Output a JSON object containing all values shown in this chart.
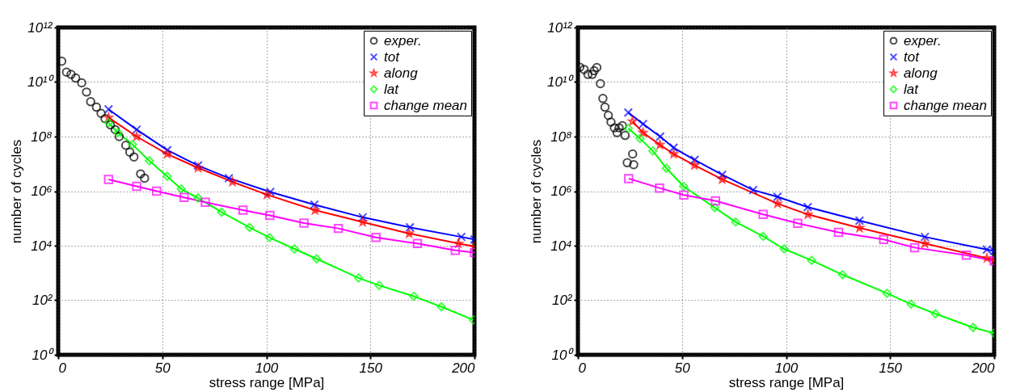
{
  "chart_data": [
    {
      "type": "line",
      "xlabel": "stress range [MPa]",
      "ylabel": "number of cycles",
      "log": "y",
      "grid": true,
      "legend": "top right",
      "xlim": [
        0,
        200
      ],
      "xticks": [
        0,
        50,
        100,
        150,
        200
      ],
      "ylim": [
        1,
        1000000000000.0
      ],
      "yticks": [
        {
          "value": 1,
          "label": "10⁰"
        },
        {
          "value": 100,
          "label": "10²"
        },
        {
          "value": 10000,
          "label": "10⁴"
        },
        {
          "value": 1000000,
          "label": "10⁶"
        },
        {
          "value": 100000000,
          "label": "10⁸"
        },
        {
          "value": 10000000000,
          "label": "10¹⁰"
        },
        {
          "value": 1000000000000,
          "label": "10¹²"
        }
      ],
      "series": [
        {
          "name": "exper.",
          "type": "scatter",
          "marker": "circle",
          "color": "#000000",
          "x": [
            1.7,
            4,
            6.2,
            8.4,
            11.3,
            13.6,
            15.6,
            18.4,
            20.6,
            22.5,
            25.1,
            27.4,
            29.3,
            32.5,
            34.4,
            36.4,
            39.6,
            41.5
          ],
          "values": [
            58000000000.0,
            23000000000.0,
            19000000000.0,
            14000000000.0,
            9300000000.0,
            4300000000.0,
            1900000000.0,
            1200000000.0,
            710000000.0,
            460000000.0,
            270000000.0,
            180000000.0,
            100000000.0,
            48000000.0,
            27000000.0,
            18000000.0,
            4300000.0,
            3000000.0
          ]
        },
        {
          "name": "tot",
          "marker": "cross",
          "color": "#0000ff",
          "x": [
            24.2,
            37.7,
            52.4,
            67.2,
            82,
            101.9,
            123.1,
            146.3,
            169,
            193.7,
            200
          ],
          "values": [
            1000000000.0,
            180000000.0,
            32000000.0,
            8700000.0,
            3000000.0,
            930000.0,
            320000.0,
            110000.0,
            47000.0,
            21000.0,
            17000.0
          ]
        },
        {
          "name": "along",
          "marker": "star",
          "color": "#ff0000",
          "x": [
            24.2,
            37.7,
            52.4,
            67.2,
            83.7,
            100.3,
            123.4,
            146.3,
            168.6,
            192.3,
            200
          ],
          "values": [
            500000000.0,
            100000000.0,
            23000000.0,
            7100000.0,
            2200000.0,
            740000.0,
            200000.0,
            74000.0,
            28000.0,
            12000.0,
            9300.0
          ]
        },
        {
          "name": "lat",
          "marker": "diamond",
          "color": "#00ff00",
          "x": [
            24.2,
            28.7,
            35.7,
            43.8,
            52.4,
            59.1,
            67.2,
            78.5,
            91.9,
            101.5,
            113.5,
            124.2,
            144.3,
            154.2,
            170.9,
            184.1,
            199.5
          ],
          "values": [
            320000000.0,
            140000000.0,
            51000000.0,
            13000000.0,
            3500000.0,
            1200000.0,
            560000.0,
            170000.0,
            47000.0,
            20000.0,
            7600.0,
            3300.0,
            660,
            350,
            140,
            58,
            19
          ]
        },
        {
          "name": "change mean",
          "marker": "square",
          "color": "#ff00ff",
          "x": [
            24.2,
            37.7,
            47.3,
            60.5,
            70.7,
            88.8,
            101.7,
            118.1,
            134.6,
            152.7,
            172.6,
            190.8,
            200
          ],
          "values": [
            2700000.0,
            1500000.0,
            1000000.0,
            590000.0,
            390000.0,
            200000.0,
            130000.0,
            68000.0,
            43000.0,
            20000.0,
            12000.0,
            6800.0,
            5600.0
          ]
        }
      ]
    },
    {
      "type": "line",
      "xlabel": "stress range [MPa]",
      "ylabel": "number of cycles",
      "log": "y",
      "grid": true,
      "legend": "top right",
      "xlim": [
        0,
        200
      ],
      "xticks": [
        0,
        50,
        100,
        150,
        200
      ],
      "ylim": [
        1,
        1000000000000.0
      ],
      "yticks": [
        {
          "value": 1,
          "label": "10⁰"
        },
        {
          "value": 100,
          "label": "10²"
        },
        {
          "value": 10000,
          "label": "10⁴"
        },
        {
          "value": 1000000,
          "label": "10⁶"
        },
        {
          "value": 100000000,
          "label": "10⁸"
        },
        {
          "value": 10000000000,
          "label": "10¹⁰"
        },
        {
          "value": 1000000000000,
          "label": "10¹²"
        }
      ],
      "series": [
        {
          "name": "exper.",
          "type": "scatter",
          "marker": "circle",
          "color": "#000000",
          "x": [
            0.9,
            3,
            4.8,
            6.9,
            7.8,
            9.1,
            10.8,
            12,
            13,
            14.6,
            15.9,
            17.5,
            18.8,
            19.8,
            21.4,
            22.7,
            23.7,
            26.3,
            26.8
          ],
          "values": [
            35000000000.0,
            29000000000.0,
            19000000000.0,
            19000000000.0,
            26000000000.0,
            34000000000.0,
            8700000000.0,
            2500000000.0,
            1200000000.0,
            600000000.0,
            340000000.0,
            210000000.0,
            140000000.0,
            210000000.0,
            250000000.0,
            110000000.0,
            11000000.0,
            23000000.0,
            9300000.0
          ]
        },
        {
          "name": "tot",
          "marker": "cross",
          "color": "#0000ff",
          "x": [
            24.2,
            31.3,
            39.5,
            46,
            56.1,
            69.3,
            84.2,
            95.9,
            110.4,
            135.3,
            166.7,
            196.5,
            200
          ],
          "values": [
            760000000.0,
            290000000.0,
            100000000.0,
            39000000.0,
            14000000.0,
            4000000.0,
            1100000.0,
            620000.0,
            260000.0,
            83000.0,
            21000.0,
            7200.0,
            6300.0
          ]
        },
        {
          "name": "along",
          "marker": "star",
          "color": "#ff0000",
          "x": [
            26.2,
            31.3,
            39.4,
            46,
            56,
            69.3,
            95.9,
            110.5,
            135.3,
            166.7,
            196.5,
            200
          ],
          "values": [
            360000000.0,
            140000000.0,
            50000000.0,
            23000000.0,
            8900000.0,
            2700000.0,
            350000.0,
            140000.0,
            45000.0,
            12000.0,
            3500.0,
            3000.0
          ]
        },
        {
          "name": "lat",
          "marker": "diamond",
          "color": "#00ff00",
          "x": [
            24.2,
            29.8,
            36,
            42.5,
            50.8,
            65.7,
            75.8,
            89,
            99.1,
            112.3,
            127.1,
            148.5,
            160.1,
            171.8,
            189.9,
            200
          ],
          "values": [
            200000000.0,
            85000000.0,
            30000000.0,
            6900000.0,
            1500000.0,
            250000.0,
            74000.0,
            22000.0,
            7600.0,
            2900.0,
            870,
            180,
            72,
            32,
            10,
            6.2
          ]
        },
        {
          "name": "change mean",
          "marker": "square",
          "color": "#ff00ff",
          "x": [
            24.4,
            39.2,
            50.9,
            66.1,
            89,
            105.6,
            125.2,
            146.9,
            161.8,
            186.6,
            200
          ],
          "values": [
            2900000.0,
            1300000.0,
            720000.0,
            440000.0,
            140000.0,
            66000.0,
            31000.0,
            17000.0,
            8500.0,
            4500.0,
            2800.0
          ]
        }
      ]
    }
  ]
}
